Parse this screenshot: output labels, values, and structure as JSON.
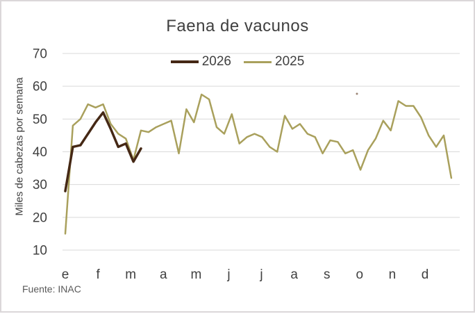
{
  "source_note": "Fuente: INAC",
  "colors": {
    "background": "#ffffff",
    "border": "#dbd7d9",
    "grid": "#d9d9d9",
    "text": "#404040",
    "source_text": "#595959"
  },
  "chart_data": {
    "type": "line",
    "title": "Faena de vacunos",
    "xlabel": "",
    "ylabel": "Miles de cabezas por semana",
    "x_unit": "week of year",
    "x_month_labels": [
      "e",
      "f",
      "m",
      "a",
      "m",
      "j",
      "j",
      "a",
      "s",
      "o",
      "n",
      "d"
    ],
    "ylim": [
      10,
      70
    ],
    "yticks": [
      10,
      20,
      30,
      40,
      50,
      60,
      70
    ],
    "grid": "horizontal",
    "legend_position": "top-center",
    "legend_entries": [
      "2026",
      "2025"
    ],
    "series": [
      {
        "name": "2026",
        "color": "#452815",
        "stroke_width": 3.5,
        "start_week": 1,
        "values": [
          28,
          41.5,
          42,
          45.5,
          49,
          52,
          47,
          41.5,
          42.5,
          37,
          41
        ]
      },
      {
        "name": "2025",
        "color": "#a9a05c",
        "stroke_width": 2.5,
        "start_week": 1,
        "values": [
          15,
          48,
          50,
          54.5,
          53.5,
          54.5,
          48.5,
          45.5,
          44,
          37.5,
          46.5,
          46,
          47.5,
          48.5,
          49.5,
          39.5,
          53,
          49,
          57.5,
          56,
          47.5,
          45.5,
          51.5,
          42.5,
          44.5,
          45.5,
          44.5,
          41.5,
          40,
          51,
          47,
          48.5,
          45.5,
          44.5,
          39.5,
          43.5,
          43,
          39.5,
          40.5,
          34.5,
          40.5,
          44,
          49.5,
          46.5,
          55.5,
          54,
          54,
          50.5,
          45,
          41.5,
          45,
          32
        ]
      }
    ]
  }
}
